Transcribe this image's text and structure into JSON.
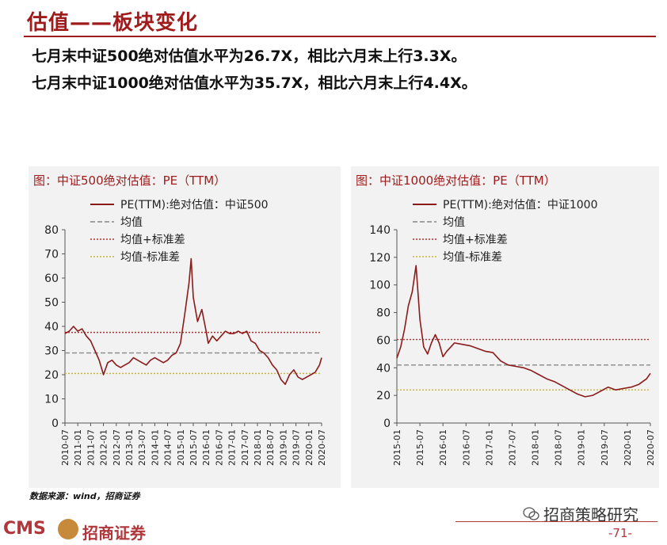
{
  "page": {
    "title": "估值——板块变化",
    "line1": "七月末中证500绝对估值水平为26.7X，相比六月末上行3.3X。",
    "line2": "七月末中证1000绝对估值水平为35.7X，相比六月末上行4.4X。",
    "source": "数据来源：wind，招商证券",
    "logo_text": "CMS",
    "logo_cn": "招商证券",
    "wechat": "招商策略研究",
    "page_number": "-71-",
    "accent_color": "#a01c1c"
  },
  "chart_data": [
    {
      "type": "line",
      "title": "图：中证500绝对估值：PE（TTM）",
      "legend": [
        "PE(TTM):绝对估值：中证500",
        "均值",
        "均值+标准差",
        "均值-标准差"
      ],
      "legend_position": "top",
      "ylim": [
        0,
        80
      ],
      "yticks": [
        "0",
        "10",
        "20",
        "30",
        "40",
        "50",
        "60",
        "70",
        "80"
      ],
      "xticks": [
        "2010-07",
        "2011-01",
        "2011-07",
        "2012-01",
        "2012-07",
        "2013-01",
        "2013-07",
        "2014-01",
        "2014-07",
        "2015-01",
        "2015-07",
        "2016-01",
        "2016-07",
        "2017-01",
        "2017-07",
        "2018-01",
        "2018-07",
        "2019-01",
        "2019-07",
        "2020-01",
        "2020-07"
      ],
      "x_start": "2010-07",
      "mean": 29.0,
      "mean_plus_std": 37.5,
      "mean_minus_std": 20.5,
      "series": [
        {
          "name": "PE(TTM):绝对估值：中证500",
          "color": "#8b1a1a",
          "x": [
            "2010-07",
            "2010-09",
            "2010-11",
            "2011-01",
            "2011-03",
            "2011-05",
            "2011-07",
            "2011-09",
            "2011-11",
            "2012-01",
            "2012-03",
            "2012-05",
            "2012-07",
            "2012-09",
            "2012-11",
            "2013-01",
            "2013-03",
            "2013-05",
            "2013-07",
            "2013-09",
            "2013-11",
            "2014-01",
            "2014-03",
            "2014-05",
            "2014-07",
            "2014-09",
            "2014-11",
            "2015-01",
            "2015-03",
            "2015-05",
            "2015-06",
            "2015-07",
            "2015-09",
            "2015-11",
            "2016-01",
            "2016-02",
            "2016-04",
            "2016-06",
            "2016-08",
            "2016-10",
            "2016-12",
            "2017-02",
            "2017-04",
            "2017-06",
            "2017-08",
            "2017-10",
            "2017-12",
            "2018-02",
            "2018-04",
            "2018-06",
            "2018-08",
            "2018-10",
            "2018-12",
            "2019-02",
            "2019-04",
            "2019-06",
            "2019-08",
            "2019-10",
            "2019-12",
            "2020-02",
            "2020-04",
            "2020-06",
            "2020-07"
          ],
          "values": [
            37,
            38,
            40,
            38,
            39,
            36,
            34,
            30,
            26,
            20,
            25,
            26,
            24,
            23,
            24,
            25,
            27,
            26,
            25,
            24,
            26,
            27,
            26,
            25,
            26,
            28,
            29,
            33,
            45,
            58,
            68,
            52,
            42,
            47,
            38,
            33,
            36,
            34,
            36,
            38,
            37,
            37,
            38,
            37,
            38,
            34,
            33,
            30,
            29,
            27,
            24,
            22,
            18,
            16,
            20,
            22,
            19,
            18,
            19,
            20,
            21,
            24,
            27
          ]
        }
      ]
    },
    {
      "type": "line",
      "title": "图：中证1000绝对估值：PE（TTM）",
      "legend": [
        "PE(TTM):绝对估值：中证1000",
        "均值",
        "均值+标准差",
        "均值-标准差"
      ],
      "legend_position": "top",
      "ylim": [
        0,
        140
      ],
      "yticks": [
        "0",
        "20",
        "40",
        "60",
        "80",
        "100",
        "120",
        "140"
      ],
      "xticks": [
        "2015-01",
        "2015-07",
        "2016-01",
        "2016-07",
        "2017-01",
        "2017-07",
        "2018-01",
        "2018-07",
        "2019-01",
        "2019-07",
        "2020-01",
        "2020-07"
      ],
      "x_start": "2015-01",
      "mean": 42.0,
      "mean_plus_std": 60.5,
      "mean_minus_std": 24.0,
      "series": [
        {
          "name": "PE(TTM):绝对估值：中证1000",
          "color": "#8b1a1a",
          "x": [
            "2015-01",
            "2015-02",
            "2015-03",
            "2015-04",
            "2015-05",
            "2015-06",
            "2015-07",
            "2015-08",
            "2015-09",
            "2015-10",
            "2015-11",
            "2015-12",
            "2016-01",
            "2016-02",
            "2016-04",
            "2016-06",
            "2016-08",
            "2016-10",
            "2016-12",
            "2017-02",
            "2017-04",
            "2017-06",
            "2017-08",
            "2017-10",
            "2017-12",
            "2018-02",
            "2018-04",
            "2018-06",
            "2018-08",
            "2018-10",
            "2018-12",
            "2019-02",
            "2019-04",
            "2019-06",
            "2019-08",
            "2019-10",
            "2019-12",
            "2020-02",
            "2020-04",
            "2020-06",
            "2020-07"
          ],
          "values": [
            47,
            55,
            68,
            85,
            95,
            114,
            75,
            55,
            50,
            58,
            64,
            58,
            48,
            52,
            58,
            57,
            56,
            54,
            52,
            51,
            45,
            42,
            41,
            40,
            38,
            35,
            32,
            30,
            27,
            24,
            21,
            19,
            20,
            23,
            26,
            24,
            25,
            26,
            28,
            32,
            36
          ]
        }
      ]
    }
  ]
}
